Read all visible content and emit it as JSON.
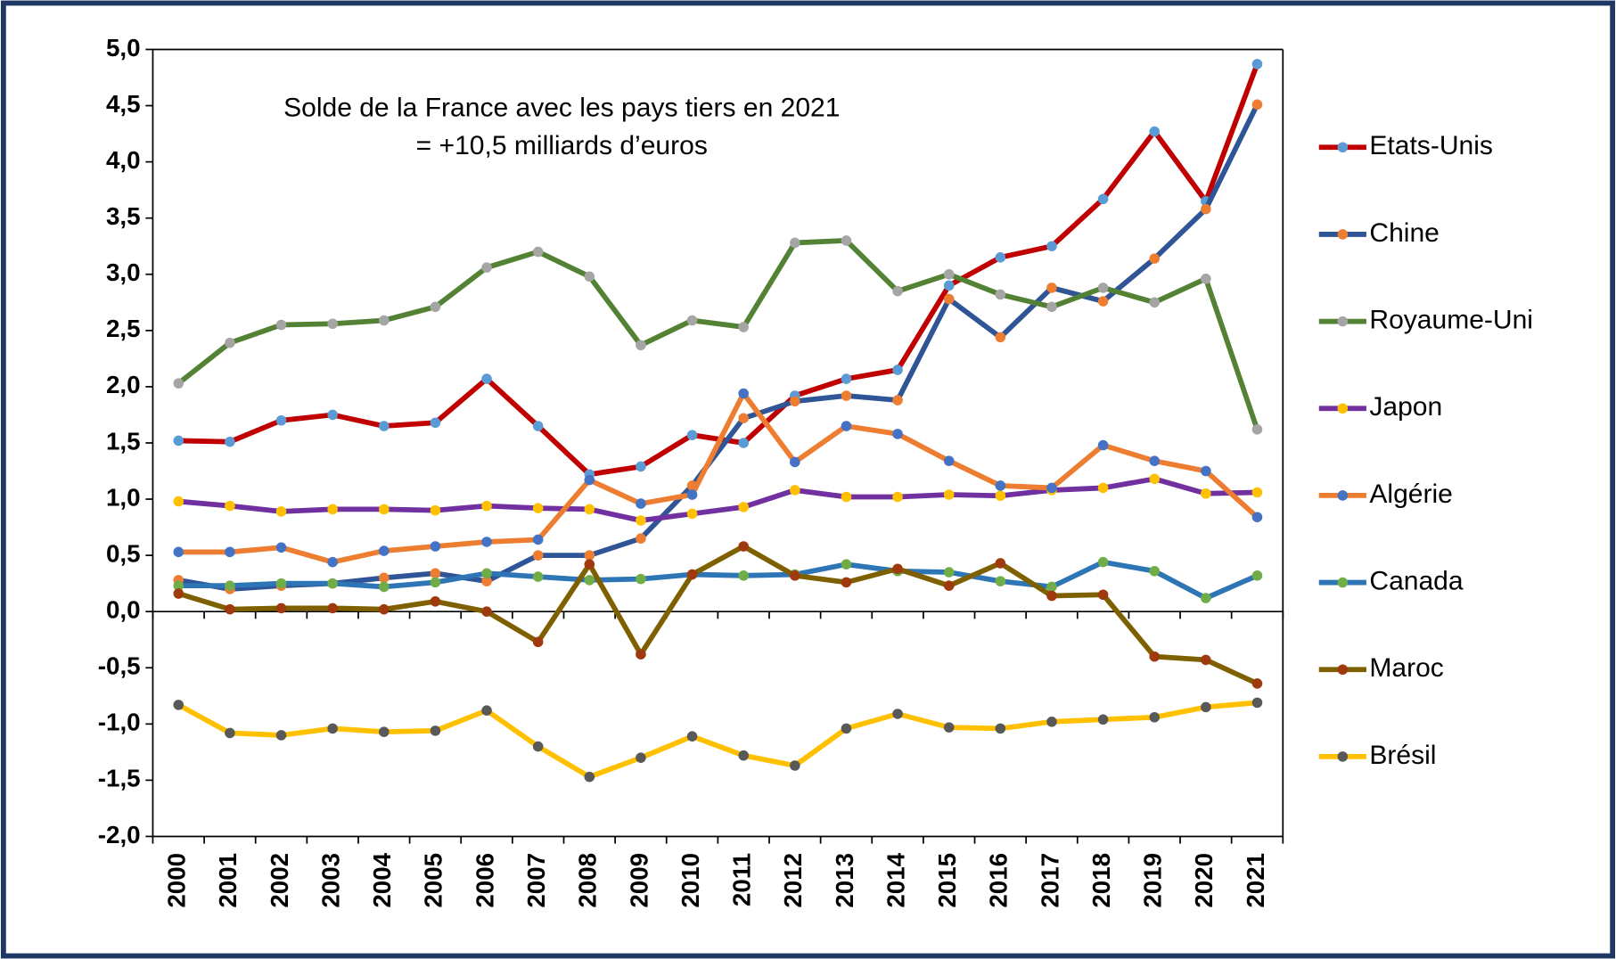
{
  "chart_data": {
    "type": "line",
    "annotation": [
      "Solde de la France avec les pays tiers en 2021",
      "= +10,5 milliards d’euros"
    ],
    "categories": [
      "2000",
      "2001",
      "2002",
      "2003",
      "2004",
      "2005",
      "2006",
      "2007",
      "2008",
      "2009",
      "2010",
      "2011",
      "2012",
      "2013",
      "2014",
      "2015",
      "2016",
      "2017",
      "2018",
      "2019",
      "2020",
      "2021"
    ],
    "series": [
      {
        "name": "Etats-Unis",
        "color": "#c00000",
        "marker_color": "#5b9bd5",
        "values": [
          1.52,
          1.51,
          1.7,
          1.75,
          1.65,
          1.68,
          2.07,
          1.65,
          1.22,
          1.29,
          1.57,
          1.5,
          1.92,
          2.07,
          2.15,
          2.9,
          3.15,
          3.25,
          3.67,
          4.27,
          3.65,
          4.87
        ]
      },
      {
        "name": "Chine",
        "color": "#2f5597",
        "marker_color": "#ed7d31",
        "values": [
          0.28,
          0.2,
          0.23,
          0.25,
          0.3,
          0.34,
          0.27,
          0.5,
          0.5,
          0.65,
          1.12,
          1.72,
          1.87,
          1.92,
          1.88,
          2.78,
          2.44,
          2.88,
          2.76,
          3.14,
          3.58,
          4.51
        ]
      },
      {
        "name": "Royaume-Uni",
        "color": "#548235",
        "marker_color": "#a5a5a5",
        "values": [
          2.03,
          2.39,
          2.55,
          2.56,
          2.59,
          2.71,
          3.06,
          3.2,
          2.98,
          2.37,
          2.59,
          2.53,
          3.28,
          3.3,
          2.85,
          3.0,
          2.82,
          2.71,
          2.88,
          2.75,
          2.96,
          1.62
        ]
      },
      {
        "name": "Japon",
        "color": "#7030a0",
        "marker_color": "#ffc000",
        "values": [
          0.98,
          0.94,
          0.89,
          0.91,
          0.91,
          0.9,
          0.94,
          0.92,
          0.91,
          0.81,
          0.87,
          0.93,
          1.08,
          1.02,
          1.02,
          1.04,
          1.03,
          1.08,
          1.1,
          1.18,
          1.05,
          1.06
        ]
      },
      {
        "name": "Algérie",
        "color": "#ed7d31",
        "marker_color": "#4472c4",
        "values": [
          0.53,
          0.53,
          0.57,
          0.44,
          0.54,
          0.58,
          0.62,
          0.64,
          1.17,
          0.96,
          1.04,
          1.94,
          1.33,
          1.65,
          1.58,
          1.34,
          1.12,
          1.1,
          1.48,
          1.34,
          1.25,
          0.84
        ]
      },
      {
        "name": "Canada",
        "color": "#2e75b6",
        "marker_color": "#70ad47",
        "values": [
          0.23,
          0.23,
          0.25,
          0.25,
          0.22,
          0.26,
          0.34,
          0.31,
          0.28,
          0.29,
          0.33,
          0.32,
          0.33,
          0.42,
          0.36,
          0.35,
          0.27,
          0.22,
          0.44,
          0.36,
          0.12,
          0.32
        ]
      },
      {
        "name": "Maroc",
        "color": "#7f6000",
        "marker_color": "#9e3a0e",
        "values": [
          0.16,
          0.02,
          0.03,
          0.03,
          0.02,
          0.09,
          0.0,
          -0.27,
          0.42,
          -0.38,
          0.33,
          0.58,
          0.32,
          0.26,
          0.38,
          0.23,
          0.43,
          0.14,
          0.15,
          -0.4,
          -0.43,
          -0.64
        ]
      },
      {
        "name": "Brésil",
        "color": "#ffc000",
        "marker_color": "#595959",
        "values": [
          -0.83,
          -1.08,
          -1.1,
          -1.04,
          -1.07,
          -1.06,
          -0.88,
          -1.2,
          -1.47,
          -1.3,
          -1.11,
          -1.28,
          -1.37,
          -1.04,
          -0.91,
          -1.03,
          -1.04,
          -0.98,
          -0.96,
          -0.94,
          -0.85,
          -0.81
        ]
      }
    ],
    "ylim": [
      -2,
      5
    ],
    "yticks": [
      {
        "value": 5,
        "label": "5,0"
      },
      {
        "value": 4.5,
        "label": "4,5"
      },
      {
        "value": 4,
        "label": "4,0"
      },
      {
        "value": 3.5,
        "label": "3,5"
      },
      {
        "value": 3,
        "label": "3,0"
      },
      {
        "value": 2.5,
        "label": "2,5"
      },
      {
        "value": 2,
        "label": "2,0"
      },
      {
        "value": 1.5,
        "label": "1,5"
      },
      {
        "value": 1,
        "label": "1,0"
      },
      {
        "value": 0.5,
        "label": "0,5"
      },
      {
        "value": 0,
        "label": "0,0"
      },
      {
        "value": -0.5,
        "label": "-0,5"
      },
      {
        "value": -1,
        "label": "-1,0"
      },
      {
        "value": -1.5,
        "label": "-1,5"
      },
      {
        "value": -2,
        "label": "-2,0"
      }
    ],
    "grid": false,
    "legend": "right"
  }
}
